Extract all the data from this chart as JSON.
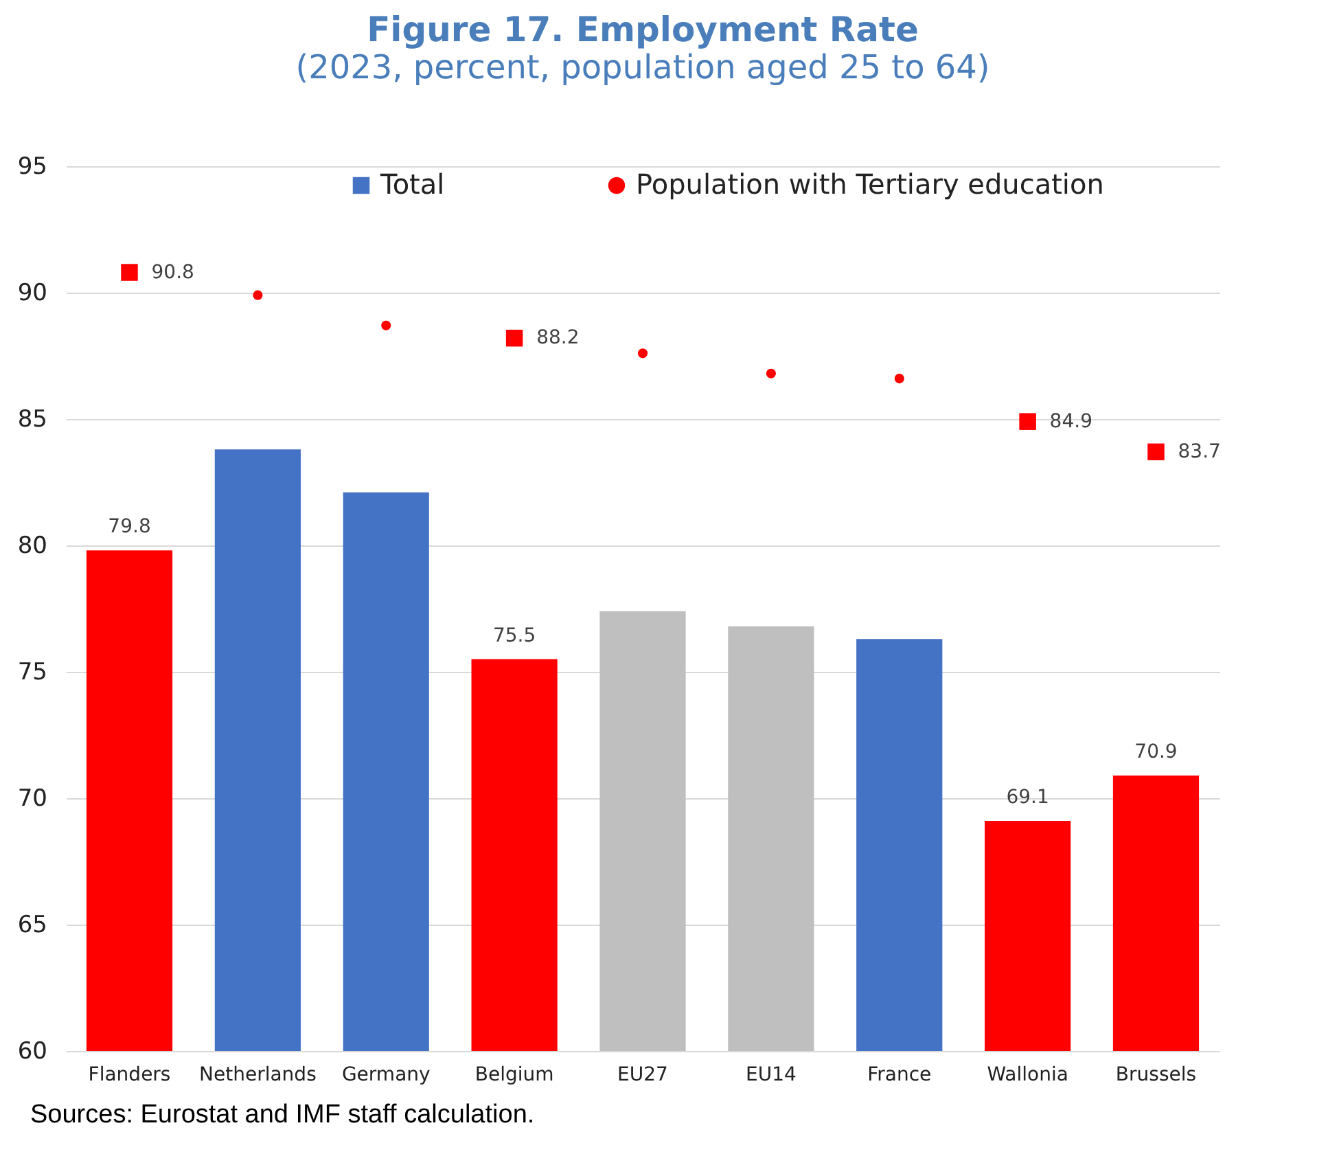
{
  "chart_data": {
    "type": "bar",
    "title": "Figure 17. Employment Rate",
    "subtitle": "(2023, percent, population aged 25 to 64)",
    "categories": [
      "Flanders",
      "Netherlands",
      "Germany",
      "Belgium",
      "EU27",
      "EU14",
      "France",
      "Wallonia",
      "Brussels"
    ],
    "series": [
      {
        "name": "Total",
        "color": "#4472c4",
        "colors": [
          "#ff0000",
          "#4472c4",
          "#4472c4",
          "#ff0000",
          "#bfbfbf",
          "#bfbfbf",
          "#4472c4",
          "#ff0000",
          "#ff0000"
        ],
        "values": [
          79.8,
          83.8,
          82.1,
          75.5,
          77.4,
          76.8,
          76.3,
          69.1,
          70.9
        ],
        "value_labels": [
          "79.8",
          null,
          null,
          "75.5",
          null,
          null,
          null,
          "69.1",
          "70.9"
        ]
      },
      {
        "name": "Population with Tertiary education",
        "color": "#ff0000",
        "type": "scatter",
        "marker": "circle",
        "values": [
          null,
          89.9,
          88.7,
          null,
          87.6,
          86.8,
          86.6,
          null,
          null
        ]
      },
      {
        "color": "#ff0000",
        "type": "scatter",
        "marker": "square",
        "values": [
          90.8,
          null,
          null,
          88.2,
          null,
          null,
          null,
          84.9,
          83.7
        ],
        "value_labels": [
          "90.8",
          null,
          null,
          "88.2",
          null,
          null,
          null,
          "84.9",
          "83.7"
        ]
      }
    ],
    "ylim": [
      60,
      95
    ],
    "yticks": [
      60,
      65,
      70,
      75,
      80,
      85,
      90,
      95
    ],
    "grid": "y",
    "legend": "top",
    "annotations": [
      "Sources: Eurostat and IMF staff calculation."
    ]
  }
}
